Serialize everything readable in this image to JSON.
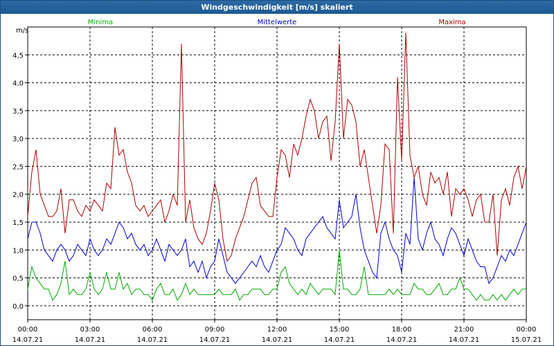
{
  "window": {
    "title": "Windgeschwindigkeit [m/s] skaliert"
  },
  "chart_data": {
    "type": "line",
    "title": "Windgeschwindigkeit [m/s] skaliert",
    "ylabel": "m/s",
    "xlabel": "",
    "ylim": [
      -0.25,
      5.0
    ],
    "y_ticks": [
      0.0,
      0.5,
      1.0,
      1.5,
      2.0,
      2.5,
      3.0,
      3.5,
      4.0,
      4.5
    ],
    "y_tick_labels": [
      "0,0",
      "0,5",
      "1,0",
      "1,5",
      "2,0",
      "2,5",
      "3,0",
      "3,5",
      "4,0",
      "4,5"
    ],
    "xlim_hours": [
      0,
      24
    ],
    "x_ticks": [
      {
        "hour": 0,
        "time": "00:00",
        "date": "14.07.21"
      },
      {
        "hour": 3,
        "time": "03:00",
        "date": "14.07.21"
      },
      {
        "hour": 6,
        "time": "06:00",
        "date": "14.07.21"
      },
      {
        "hour": 9,
        "time": "09:00",
        "date": "14.07.21"
      },
      {
        "hour": 12,
        "time": "12:00",
        "date": "14.07.21"
      },
      {
        "hour": 15,
        "time": "15:00",
        "date": "14.07.21"
      },
      {
        "hour": 18,
        "time": "18:00",
        "date": "14.07.21"
      },
      {
        "hour": 21,
        "time": "21:00",
        "date": "14.07.21"
      },
      {
        "hour": 24,
        "time": "00:00",
        "date": "15.07.21"
      }
    ],
    "grid": true,
    "legend": "top",
    "x": [
      0.0,
      0.2,
      0.4,
      0.6,
      0.8,
      1.0,
      1.2,
      1.4,
      1.6,
      1.8,
      2.0,
      2.2,
      2.4,
      2.6,
      2.8,
      3.0,
      3.2,
      3.4,
      3.6,
      3.8,
      4.0,
      4.2,
      4.4,
      4.6,
      4.8,
      5.0,
      5.2,
      5.4,
      5.6,
      5.8,
      6.0,
      6.2,
      6.4,
      6.6,
      6.8,
      7.0,
      7.2,
      7.4,
      7.6,
      7.8,
      8.0,
      8.2,
      8.4,
      8.6,
      8.8,
      9.0,
      9.2,
      9.4,
      9.6,
      9.8,
      10.0,
      10.2,
      10.4,
      10.6,
      10.8,
      11.0,
      11.2,
      11.4,
      11.6,
      11.8,
      12.0,
      12.2,
      12.4,
      12.6,
      12.8,
      13.0,
      13.2,
      13.4,
      13.6,
      13.8,
      14.0,
      14.2,
      14.4,
      14.6,
      14.8,
      15.0,
      15.2,
      15.4,
      15.6,
      15.8,
      16.0,
      16.2,
      16.4,
      16.6,
      16.8,
      17.0,
      17.2,
      17.4,
      17.6,
      17.8,
      18.0,
      18.2,
      18.4,
      18.6,
      18.8,
      19.0,
      19.2,
      19.4,
      19.6,
      19.8,
      20.0,
      20.2,
      20.4,
      20.6,
      20.8,
      21.0,
      21.2,
      21.4,
      21.6,
      21.8,
      22.0,
      22.2,
      22.4,
      22.6,
      22.8,
      23.0,
      23.2,
      23.4,
      23.6,
      23.8,
      24.0
    ],
    "series": [
      {
        "name": "Minima",
        "color": "#00aa00",
        "values": [
          0.3,
          0.7,
          0.5,
          0.4,
          0.3,
          0.3,
          0.1,
          0.2,
          0.4,
          0.8,
          0.2,
          0.3,
          0.2,
          0.2,
          0.3,
          0.6,
          0.3,
          0.2,
          0.3,
          0.6,
          0.3,
          0.3,
          0.6,
          0.3,
          0.4,
          0.2,
          0.3,
          0.3,
          0.2,
          0.2,
          0.1,
          0.3,
          0.4,
          0.2,
          0.2,
          0.3,
          0.1,
          0.2,
          0.4,
          0.2,
          0.3,
          0.2,
          0.2,
          0.2,
          0.2,
          0.2,
          0.3,
          0.2,
          0.2,
          0.2,
          0.3,
          0.1,
          0.2,
          0.2,
          0.3,
          0.3,
          0.3,
          0.2,
          0.2,
          0.3,
          0.3,
          0.6,
          0.7,
          0.4,
          0.3,
          0.2,
          0.3,
          0.2,
          0.4,
          0.3,
          0.2,
          0.3,
          0.3,
          0.3,
          0.2,
          1.0,
          0.3,
          0.3,
          0.2,
          0.2,
          0.3,
          0.7,
          0.2,
          0.2,
          0.2,
          0.2,
          0.2,
          0.3,
          0.2,
          0.3,
          0.2,
          0.2,
          0.2,
          0.4,
          0.3,
          0.3,
          0.2,
          0.2,
          0.3,
          0.4,
          0.2,
          0.2,
          0.3,
          0.3,
          0.5,
          0.3,
          0.3,
          0.2,
          0.1,
          0.2,
          0.1,
          0.1,
          0.2,
          0.1,
          0.2,
          0.1,
          0.2,
          0.3,
          0.2,
          0.3,
          0.3
        ]
      },
      {
        "name": "Mittelwerte",
        "color": "#0000cc",
        "values": [
          1.2,
          1.5,
          1.5,
          1.3,
          1.0,
          0.9,
          0.8,
          1.0,
          1.1,
          1.0,
          0.8,
          0.9,
          1.1,
          1.0,
          0.9,
          1.2,
          1.0,
          0.9,
          1.0,
          1.2,
          1.1,
          1.3,
          1.5,
          1.4,
          1.2,
          1.3,
          1.1,
          1.0,
          1.1,
          0.9,
          1.0,
          1.2,
          1.0,
          0.8,
          1.1,
          1.0,
          0.9,
          1.0,
          1.2,
          0.7,
          0.8,
          0.6,
          0.8,
          0.5,
          0.7,
          0.8,
          1.2,
          0.9,
          0.6,
          0.5,
          0.4,
          0.5,
          0.6,
          0.7,
          0.8,
          0.7,
          0.9,
          0.7,
          0.6,
          0.8,
          1.0,
          1.1,
          1.4,
          1.3,
          1.2,
          1.0,
          0.9,
          1.2,
          1.3,
          1.4,
          1.5,
          1.6,
          1.4,
          1.3,
          1.2,
          1.9,
          1.4,
          1.5,
          1.6,
          2.0,
          1.4,
          1.0,
          0.8,
          0.6,
          0.5,
          1.3,
          1.5,
          1.2,
          1.0,
          0.9,
          0.6,
          1.3,
          1.1,
          2.3,
          1.2,
          1.0,
          1.3,
          1.5,
          1.2,
          1.1,
          0.9,
          1.2,
          1.4,
          1.3,
          1.1,
          0.9,
          1.2,
          1.0,
          0.8,
          0.7,
          0.7,
          0.4,
          0.5,
          0.7,
          0.9,
          0.8,
          1.0,
          0.9,
          1.1,
          1.3,
          1.5
        ]
      },
      {
        "name": "Maxima",
        "color": "#aa0000",
        "values": [
          1.6,
          2.4,
          2.8,
          2.0,
          1.8,
          1.6,
          1.6,
          1.7,
          2.1,
          1.3,
          1.9,
          1.9,
          1.7,
          1.6,
          1.8,
          1.7,
          1.9,
          1.8,
          1.7,
          2.2,
          2.1,
          3.2,
          2.7,
          2.8,
          2.4,
          2.2,
          1.8,
          1.7,
          1.8,
          1.6,
          1.7,
          1.8,
          1.9,
          1.5,
          1.7,
          2.0,
          1.8,
          4.7,
          1.5,
          1.9,
          1.4,
          1.2,
          1.1,
          1.3,
          1.7,
          2.2,
          1.9,
          1.2,
          0.8,
          0.9,
          1.2,
          1.4,
          1.6,
          1.9,
          2.2,
          2.3,
          1.8,
          1.7,
          1.6,
          1.6,
          2.3,
          2.8,
          2.7,
          2.3,
          2.9,
          2.7,
          3.0,
          3.4,
          3.7,
          3.5,
          3.0,
          3.3,
          3.4,
          2.6,
          3.3,
          4.7,
          3.0,
          3.7,
          3.6,
          3.3,
          2.5,
          2.8,
          2.3,
          1.8,
          1.3,
          1.8,
          2.9,
          2.8,
          1.3,
          4.1,
          2.6,
          4.9,
          2.7,
          2.3,
          2.5,
          2.0,
          1.8,
          2.4,
          2.2,
          2.3,
          2.0,
          2.4,
          1.6,
          2.1,
          2.0,
          2.1,
          1.9,
          1.6,
          1.9,
          2.0,
          1.5,
          1.5,
          2.0,
          0.9,
          1.9,
          2.1,
          1.8,
          2.3,
          2.5,
          2.1,
          2.5
        ]
      }
    ]
  }
}
